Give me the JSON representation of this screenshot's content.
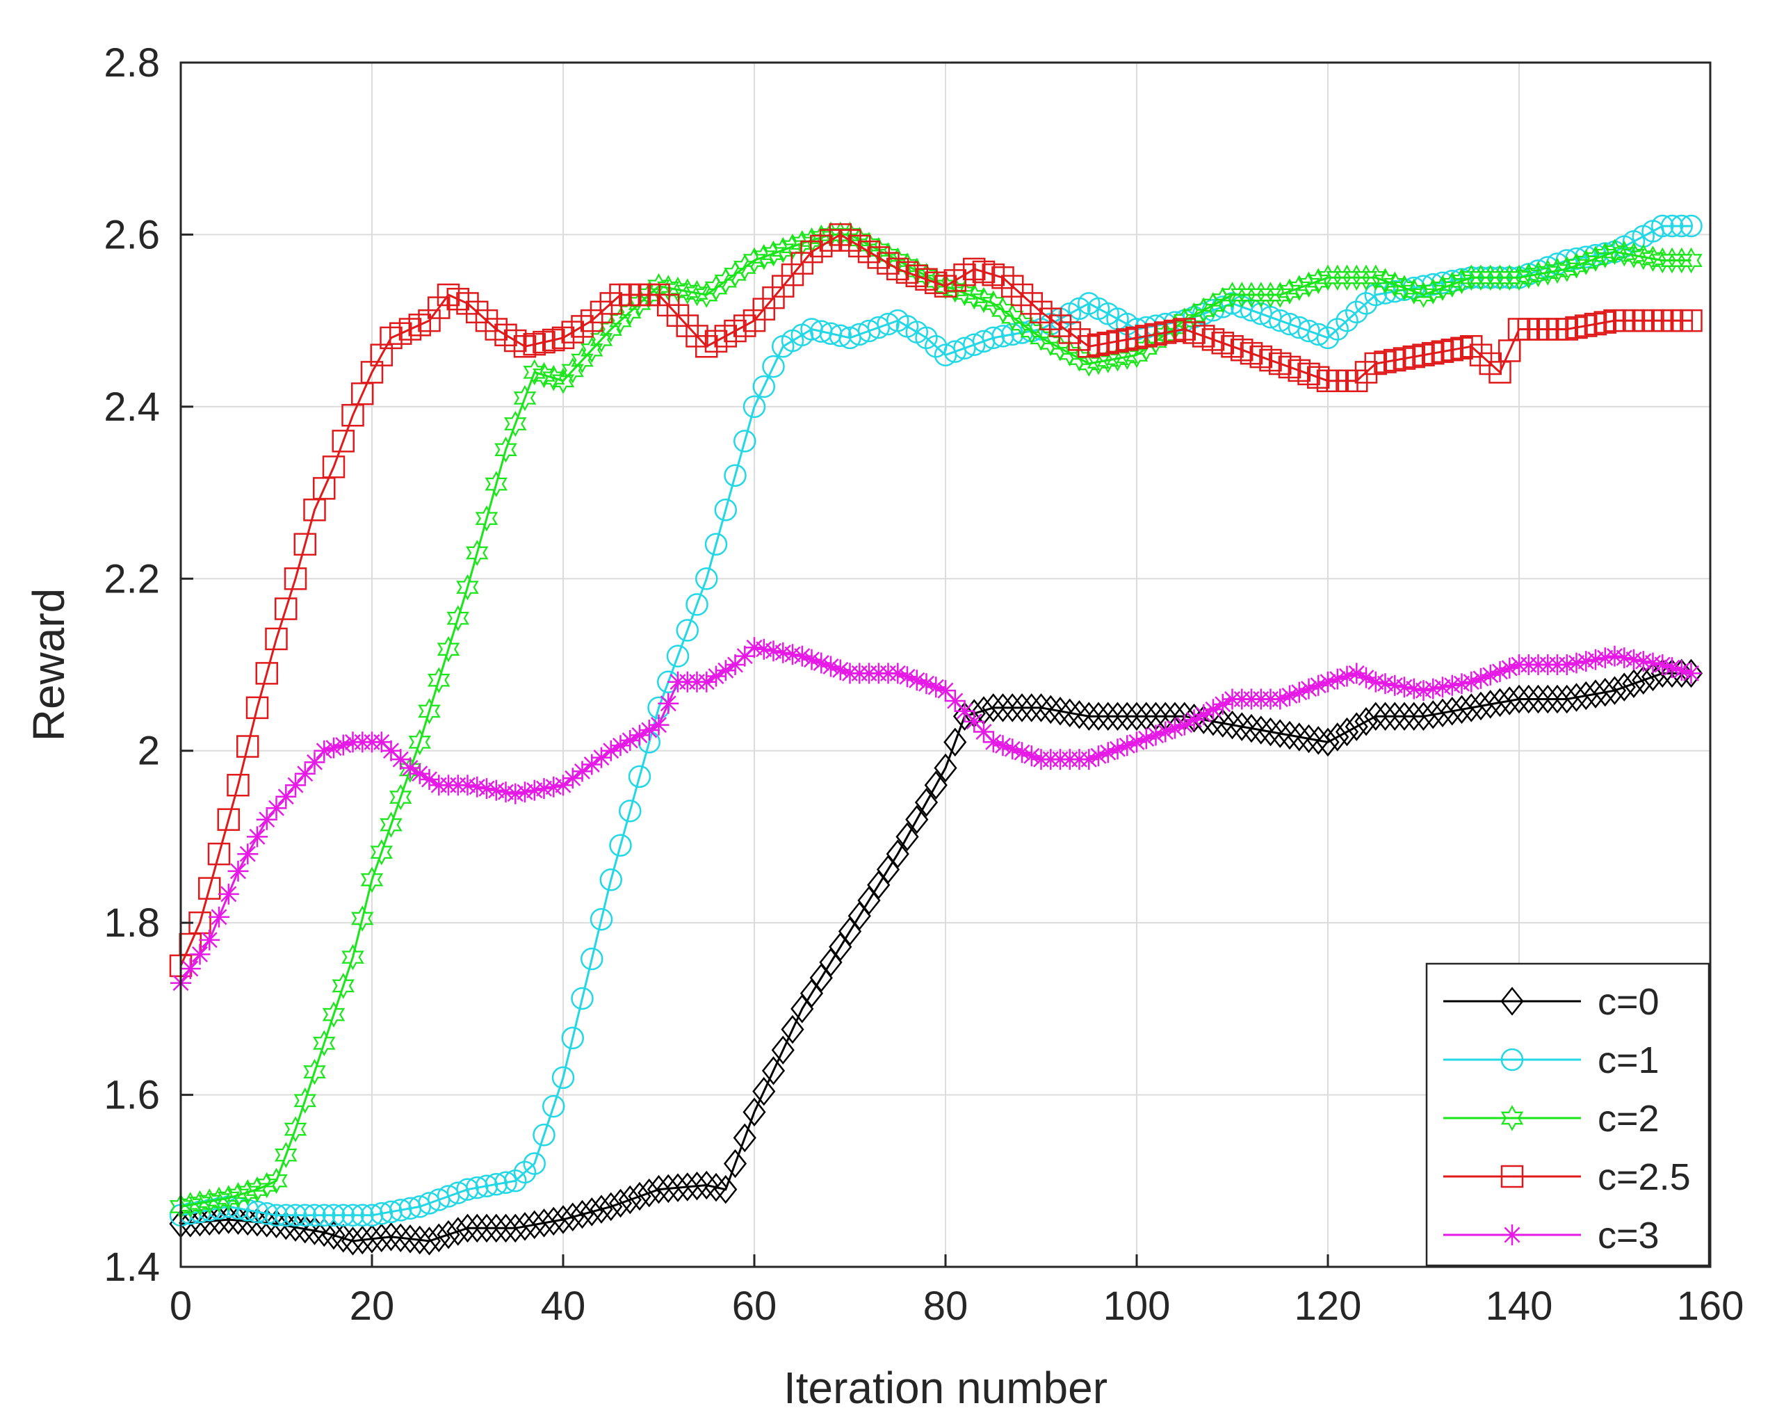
{
  "chart_data": {
    "type": "line",
    "title": "",
    "xlabel": "Iteration number",
    "ylabel": "Reward",
    "xlim": [
      0,
      160
    ],
    "ylim": [
      1.4,
      2.8
    ],
    "xticks": [
      0,
      20,
      40,
      60,
      80,
      100,
      120,
      140,
      160
    ],
    "xtick_labels": [
      "0",
      "20",
      "40",
      "60",
      "80",
      "100",
      "120",
      "140",
      "160"
    ],
    "yticks": [
      1.4,
      1.6,
      1.8,
      2.0,
      2.2,
      2.4,
      2.6,
      2.8
    ],
    "ytick_labels": [
      "1.4",
      "1.6",
      "1.8",
      "2",
      "2.2",
      "2.4",
      "2.6",
      "2.8"
    ],
    "grid": true,
    "legend_position": "bottom-right",
    "series": [
      {
        "name": "c=0",
        "color": "#000000",
        "marker": "diamond",
        "points": [
          [
            0,
            1.45
          ],
          [
            5,
            1.455
          ],
          [
            10,
            1.45
          ],
          [
            15,
            1.44
          ],
          [
            18,
            1.43
          ],
          [
            22,
            1.435
          ],
          [
            26,
            1.43
          ],
          [
            30,
            1.445
          ],
          [
            35,
            1.445
          ],
          [
            40,
            1.455
          ],
          [
            45,
            1.47
          ],
          [
            50,
            1.49
          ],
          [
            55,
            1.495
          ],
          [
            57,
            1.49
          ],
          [
            60,
            1.58
          ],
          [
            65,
            1.7
          ],
          [
            70,
            1.79
          ],
          [
            75,
            1.88
          ],
          [
            80,
            1.98
          ],
          [
            82,
            2.04
          ],
          [
            85,
            2.05
          ],
          [
            90,
            2.05
          ],
          [
            95,
            2.04
          ],
          [
            100,
            2.04
          ],
          [
            105,
            2.04
          ],
          [
            110,
            2.03
          ],
          [
            115,
            2.02
          ],
          [
            120,
            2.01
          ],
          [
            125,
            2.04
          ],
          [
            130,
            2.04
          ],
          [
            135,
            2.05
          ],
          [
            140,
            2.06
          ],
          [
            145,
            2.06
          ],
          [
            150,
            2.07
          ],
          [
            155,
            2.09
          ],
          [
            158,
            2.09
          ]
        ]
      },
      {
        "name": "c=1",
        "color": "#22d8e6",
        "marker": "circle",
        "points": [
          [
            0,
            1.46
          ],
          [
            5,
            1.47
          ],
          [
            10,
            1.46
          ],
          [
            15,
            1.46
          ],
          [
            20,
            1.46
          ],
          [
            25,
            1.47
          ],
          [
            30,
            1.49
          ],
          [
            35,
            1.5
          ],
          [
            37,
            1.52
          ],
          [
            40,
            1.62
          ],
          [
            45,
            1.85
          ],
          [
            50,
            2.05
          ],
          [
            55,
            2.2
          ],
          [
            58,
            2.32
          ],
          [
            60,
            2.4
          ],
          [
            63,
            2.47
          ],
          [
            66,
            2.49
          ],
          [
            70,
            2.48
          ],
          [
            75,
            2.5
          ],
          [
            78,
            2.48
          ],
          [
            80,
            2.46
          ],
          [
            85,
            2.48
          ],
          [
            90,
            2.49
          ],
          [
            95,
            2.52
          ],
          [
            100,
            2.49
          ],
          [
            105,
            2.5
          ],
          [
            110,
            2.52
          ],
          [
            115,
            2.5
          ],
          [
            120,
            2.48
          ],
          [
            125,
            2.53
          ],
          [
            130,
            2.54
          ],
          [
            135,
            2.55
          ],
          [
            140,
            2.55
          ],
          [
            145,
            2.57
          ],
          [
            150,
            2.58
          ],
          [
            155,
            2.61
          ],
          [
            158,
            2.61
          ]
        ]
      },
      {
        "name": "c=2",
        "color": "#19e619",
        "marker": "hexagram",
        "points": [
          [
            0,
            1.47
          ],
          [
            5,
            1.48
          ],
          [
            8,
            1.49
          ],
          [
            10,
            1.5
          ],
          [
            12,
            1.56
          ],
          [
            15,
            1.66
          ],
          [
            18,
            1.76
          ],
          [
            20,
            1.85
          ],
          [
            25,
            2.01
          ],
          [
            30,
            2.19
          ],
          [
            34,
            2.35
          ],
          [
            37,
            2.44
          ],
          [
            40,
            2.43
          ],
          [
            45,
            2.49
          ],
          [
            50,
            2.54
          ],
          [
            55,
            2.53
          ],
          [
            60,
            2.57
          ],
          [
            65,
            2.59
          ],
          [
            68,
            2.6
          ],
          [
            70,
            2.6
          ],
          [
            75,
            2.57
          ],
          [
            80,
            2.54
          ],
          [
            85,
            2.52
          ],
          [
            90,
            2.48
          ],
          [
            95,
            2.45
          ],
          [
            100,
            2.46
          ],
          [
            105,
            2.5
          ],
          [
            110,
            2.53
          ],
          [
            115,
            2.53
          ],
          [
            120,
            2.55
          ],
          [
            125,
            2.55
          ],
          [
            130,
            2.53
          ],
          [
            135,
            2.55
          ],
          [
            140,
            2.55
          ],
          [
            145,
            2.56
          ],
          [
            150,
            2.58
          ],
          [
            155,
            2.57
          ],
          [
            158,
            2.57
          ]
        ]
      },
      {
        "name": "c=2.5",
        "color": "#e01a1a",
        "marker": "square",
        "points": [
          [
            0,
            1.75
          ],
          [
            2,
            1.8
          ],
          [
            4,
            1.88
          ],
          [
            6,
            1.96
          ],
          [
            8,
            2.05
          ],
          [
            10,
            2.13
          ],
          [
            12,
            2.2
          ],
          [
            14,
            2.28
          ],
          [
            16,
            2.33
          ],
          [
            18,
            2.39
          ],
          [
            20,
            2.44
          ],
          [
            22,
            2.48
          ],
          [
            24,
            2.49
          ],
          [
            26,
            2.5
          ],
          [
            28,
            2.53
          ],
          [
            30,
            2.52
          ],
          [
            33,
            2.49
          ],
          [
            36,
            2.47
          ],
          [
            40,
            2.48
          ],
          [
            43,
            2.5
          ],
          [
            46,
            2.53
          ],
          [
            50,
            2.53
          ],
          [
            55,
            2.47
          ],
          [
            60,
            2.5
          ],
          [
            63,
            2.54
          ],
          [
            66,
            2.58
          ],
          [
            69,
            2.6
          ],
          [
            72,
            2.58
          ],
          [
            75,
            2.56
          ],
          [
            80,
            2.54
          ],
          [
            83,
            2.56
          ],
          [
            86,
            2.55
          ],
          [
            90,
            2.51
          ],
          [
            95,
            2.47
          ],
          [
            100,
            2.48
          ],
          [
            105,
            2.49
          ],
          [
            110,
            2.47
          ],
          [
            115,
            2.45
          ],
          [
            120,
            2.43
          ],
          [
            123,
            2.43
          ],
          [
            125,
            2.45
          ],
          [
            130,
            2.46
          ],
          [
            135,
            2.47
          ],
          [
            138,
            2.44
          ],
          [
            140,
            2.49
          ],
          [
            145,
            2.49
          ],
          [
            150,
            2.5
          ],
          [
            155,
            2.5
          ],
          [
            158,
            2.5
          ]
        ]
      },
      {
        "name": "c=3",
        "color": "#e619e6",
        "marker": "asterisk",
        "points": [
          [
            0,
            1.73
          ],
          [
            3,
            1.78
          ],
          [
            6,
            1.86
          ],
          [
            9,
            1.92
          ],
          [
            12,
            1.96
          ],
          [
            15,
            2.0
          ],
          [
            18,
            2.01
          ],
          [
            21,
            2.01
          ],
          [
            24,
            1.98
          ],
          [
            27,
            1.96
          ],
          [
            30,
            1.96
          ],
          [
            35,
            1.95
          ],
          [
            40,
            1.96
          ],
          [
            45,
            2.0
          ],
          [
            50,
            2.03
          ],
          [
            52,
            2.08
          ],
          [
            55,
            2.08
          ],
          [
            58,
            2.1
          ],
          [
            60,
            2.12
          ],
          [
            65,
            2.11
          ],
          [
            70,
            2.09
          ],
          [
            75,
            2.09
          ],
          [
            80,
            2.07
          ],
          [
            85,
            2.01
          ],
          [
            90,
            1.99
          ],
          [
            95,
            1.99
          ],
          [
            100,
            2.01
          ],
          [
            105,
            2.03
          ],
          [
            110,
            2.06
          ],
          [
            115,
            2.06
          ],
          [
            120,
            2.08
          ],
          [
            123,
            2.09
          ],
          [
            125,
            2.08
          ],
          [
            130,
            2.07
          ],
          [
            135,
            2.08
          ],
          [
            140,
            2.1
          ],
          [
            145,
            2.1
          ],
          [
            150,
            2.11
          ],
          [
            155,
            2.1
          ],
          [
            158,
            2.09
          ]
        ]
      }
    ]
  }
}
